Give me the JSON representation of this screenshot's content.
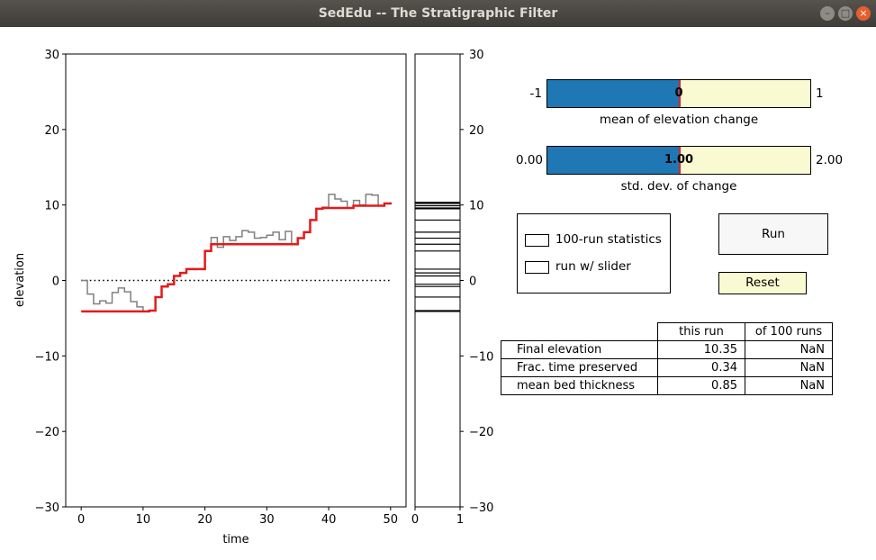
{
  "window": {
    "title": "SedEdu -- The Stratigraphic Filter",
    "minimize": "–",
    "maximize": "□",
    "close": "×"
  },
  "chart_data": [
    {
      "type": "line",
      "xlabel": "time",
      "ylabel": "elevation",
      "xlim": [
        -2.5,
        52.5
      ],
      "ylim": [
        -30,
        30
      ],
      "xticks": [
        "0",
        "10",
        "20",
        "30",
        "40",
        "50"
      ],
      "yticks": [
        "−30",
        "−20",
        "−10",
        "0",
        "10",
        "20",
        "30"
      ],
      "series": [
        {
          "style": "step",
          "color": "#808080",
          "x": [
            0,
            1,
            2,
            3,
            4,
            5,
            6,
            7,
            8,
            9,
            10,
            11,
            12,
            13,
            14,
            15,
            16,
            17,
            18,
            19,
            20,
            21,
            22,
            23,
            24,
            25,
            26,
            27,
            28,
            29,
            30,
            31,
            32,
            33,
            34,
            35,
            36,
            37,
            38,
            39,
            40,
            41,
            42,
            43,
            44,
            45,
            46,
            47,
            48,
            49,
            50
          ],
          "y": [
            0,
            -1.8,
            -3.1,
            -2.7,
            -3.0,
            -1.6,
            -1.0,
            -1.5,
            -2.8,
            -3.5,
            -4.1,
            -4.0,
            -2.2,
            -0.8,
            -0.5,
            0.6,
            1.0,
            1.5,
            1.5,
            1.5,
            3.9,
            5.7,
            4.4,
            5.8,
            5.3,
            5.8,
            6.6,
            6.4,
            5.6,
            5.7,
            6.0,
            6.4,
            5.4,
            6.5,
            4.8,
            5.6,
            6.4,
            8.0,
            9.5,
            9.7,
            11.4,
            10.8,
            10.5,
            9.6,
            10.6,
            10.0,
            11.4,
            11.3,
            9.9,
            10.2,
            10.35
          ]
        },
        {
          "style": "step",
          "color": "#e41a1c",
          "x": [
            0,
            1,
            2,
            3,
            4,
            5,
            6,
            7,
            8,
            9,
            10,
            11,
            12,
            13,
            14,
            15,
            16,
            17,
            18,
            19,
            20,
            21,
            22,
            23,
            24,
            25,
            26,
            27,
            28,
            29,
            30,
            31,
            32,
            33,
            34,
            35,
            36,
            37,
            38,
            39,
            40,
            41,
            42,
            43,
            44,
            45,
            46,
            47,
            48,
            49,
            50
          ],
          "y": [
            -4.1,
            -4.1,
            -4.1,
            -4.1,
            -4.1,
            -4.1,
            -4.1,
            -4.1,
            -4.1,
            -4.1,
            -4.1,
            -4.0,
            -2.2,
            -0.8,
            -0.5,
            0.6,
            1.0,
            1.5,
            1.5,
            1.5,
            3.9,
            4.8,
            4.8,
            4.8,
            4.8,
            4.8,
            4.8,
            4.8,
            4.8,
            4.8,
            4.8,
            4.8,
            4.8,
            4.8,
            4.8,
            5.6,
            6.4,
            8.0,
            9.5,
            9.6,
            9.6,
            9.6,
            9.6,
            9.6,
            9.9,
            9.9,
            9.9,
            9.9,
            9.9,
            10.2,
            10.35
          ]
        }
      ],
      "reference_line": {
        "y": 0,
        "x": [
          0,
          50
        ],
        "style": "dotted"
      }
    },
    {
      "type": "bar",
      "xticks": [
        "0",
        "1"
      ],
      "yticks": [
        "30",
        "20",
        "10",
        "0",
        "−10",
        "−20",
        "−30"
      ],
      "ylim": [
        -30,
        30
      ],
      "bed_boundaries": [
        10.35,
        10.2,
        9.9,
        9.6,
        9.5,
        8.0,
        6.4,
        5.6,
        4.8,
        3.9,
        1.5,
        1.0,
        0.6,
        -0.5,
        -0.8,
        -2.2,
        -4.0,
        -4.1
      ]
    }
  ],
  "sliders": {
    "mean": {
      "min_label": "-1",
      "max_label": "1",
      "value_label": "0",
      "caption": "mean of elevation change",
      "fraction": 0.5
    },
    "std": {
      "min_label": "0.00",
      "max_label": "2.00",
      "value_label": "1.00",
      "caption": "std. dev. of change",
      "fraction": 0.5
    }
  },
  "options": {
    "stats_label": "100-run statistics",
    "slider_label": "run w/ slider"
  },
  "buttons": {
    "run": "Run",
    "reset": "Reset"
  },
  "table": {
    "headers": [
      "",
      "this run",
      "of 100 runs"
    ],
    "rows": [
      {
        "label": "Final elevation",
        "this_run": "10.35",
        "of_100": "NaN"
      },
      {
        "label": "Frac. time preserved",
        "this_run": "0.34",
        "of_100": "NaN"
      },
      {
        "label": "mean bed thickness",
        "this_run": "0.85",
        "of_100": "NaN"
      }
    ]
  },
  "colors": {
    "slider_fill": "#1f77b4",
    "slider_bg": "#fafad2",
    "marker": "#d62728",
    "reset_bg": "#fafad2",
    "run_bg": "#f7f7f7"
  }
}
